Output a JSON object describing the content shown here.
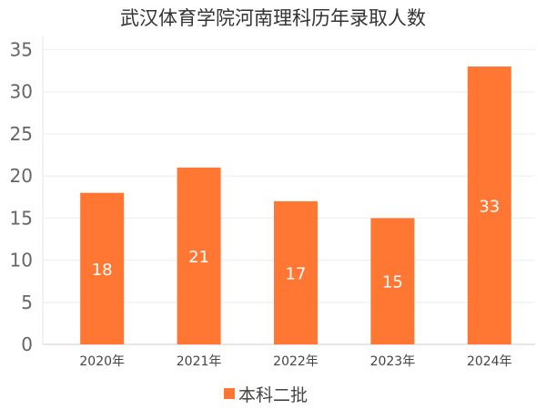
{
  "chart_data": {
    "type": "bar",
    "title": "武汉体育学院河南理科历年录取人数",
    "categories": [
      "2020年",
      "2021年",
      "2022年",
      "2023年",
      "2024年"
    ],
    "series": [
      {
        "name": "本科二批",
        "values": [
          18,
          21,
          17,
          15,
          33
        ],
        "color": "#ff7733"
      }
    ],
    "data_labels": [
      "18",
      "21",
      "17",
      "15",
      "33"
    ],
    "ylim": [
      0,
      35
    ],
    "yticks": [
      0,
      5,
      10,
      15,
      20,
      25,
      30,
      35
    ],
    "grid": true,
    "legend": "bottom"
  }
}
